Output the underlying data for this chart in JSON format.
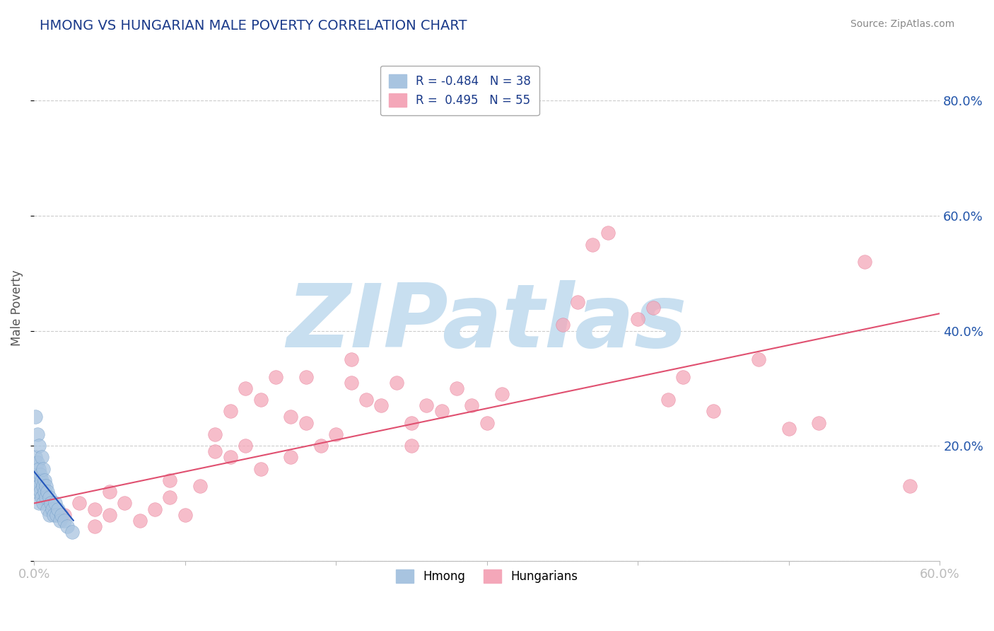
{
  "title": "HMONG VS HUNGARIAN MALE POVERTY CORRELATION CHART",
  "source_text": "Source: ZipAtlas.com",
  "ylabel": "Male Poverty",
  "xlim": [
    0.0,
    0.6
  ],
  "ylim": [
    0.0,
    0.88
  ],
  "xticks": [
    0.0,
    0.1,
    0.2,
    0.3,
    0.4,
    0.5,
    0.6
  ],
  "xticklabels": [
    "0.0%",
    "",
    "",
    "",
    "",
    "",
    "60.0%"
  ],
  "ytick_positions": [
    0.0,
    0.2,
    0.4,
    0.6,
    0.8
  ],
  "yticklabels_right": [
    "",
    "20.0%",
    "40.0%",
    "60.0%",
    "80.0%"
  ],
  "hmong_color": "#a8c4e0",
  "hmong_edge_color": "#6090c0",
  "hungarian_color": "#f4a7b9",
  "hungarian_edge_color": "#e06080",
  "hmong_R": -0.484,
  "hmong_N": 38,
  "hungarian_R": 0.495,
  "hungarian_N": 55,
  "title_color": "#1a3a8a",
  "source_color": "#888888",
  "axis_color": "#bbbbbb",
  "grid_color": "#cccccc",
  "watermark_text": "ZIPatlas",
  "watermark_color": "#c8dff0",
  "hmong_trend_color": "#2255bb",
  "hungarian_trend_color": "#e05070",
  "hmong_scatter_x": [
    0.001,
    0.001,
    0.001,
    0.002,
    0.002,
    0.002,
    0.002,
    0.003,
    0.003,
    0.003,
    0.003,
    0.004,
    0.004,
    0.005,
    0.005,
    0.005,
    0.006,
    0.006,
    0.006,
    0.007,
    0.007,
    0.008,
    0.008,
    0.009,
    0.009,
    0.01,
    0.01,
    0.011,
    0.012,
    0.013,
    0.014,
    0.015,
    0.016,
    0.017,
    0.018,
    0.02,
    0.022,
    0.025
  ],
  "hmong_scatter_y": [
    0.25,
    0.18,
    0.14,
    0.22,
    0.17,
    0.15,
    0.12,
    0.2,
    0.16,
    0.13,
    0.1,
    0.15,
    0.12,
    0.18,
    0.14,
    0.11,
    0.13,
    0.16,
    0.1,
    0.14,
    0.12,
    0.13,
    0.11,
    0.12,
    0.09,
    0.11,
    0.08,
    0.1,
    0.09,
    0.08,
    0.1,
    0.08,
    0.09,
    0.07,
    0.08,
    0.07,
    0.06,
    0.05
  ],
  "hungarian_scatter_x": [
    0.02,
    0.03,
    0.04,
    0.04,
    0.05,
    0.05,
    0.06,
    0.07,
    0.08,
    0.09,
    0.09,
    0.1,
    0.11,
    0.12,
    0.12,
    0.13,
    0.13,
    0.14,
    0.14,
    0.15,
    0.15,
    0.16,
    0.17,
    0.17,
    0.18,
    0.18,
    0.19,
    0.2,
    0.21,
    0.21,
    0.22,
    0.23,
    0.24,
    0.25,
    0.25,
    0.26,
    0.27,
    0.28,
    0.29,
    0.3,
    0.31,
    0.35,
    0.36,
    0.37,
    0.38,
    0.4,
    0.41,
    0.42,
    0.43,
    0.45,
    0.48,
    0.5,
    0.52,
    0.55,
    0.58
  ],
  "hungarian_scatter_y": [
    0.08,
    0.1,
    0.06,
    0.09,
    0.12,
    0.08,
    0.1,
    0.07,
    0.09,
    0.11,
    0.14,
    0.08,
    0.13,
    0.19,
    0.22,
    0.18,
    0.26,
    0.2,
    0.3,
    0.16,
    0.28,
    0.32,
    0.18,
    0.25,
    0.32,
    0.24,
    0.2,
    0.22,
    0.31,
    0.35,
    0.28,
    0.27,
    0.31,
    0.24,
    0.2,
    0.27,
    0.26,
    0.3,
    0.27,
    0.24,
    0.29,
    0.41,
    0.45,
    0.55,
    0.57,
    0.42,
    0.44,
    0.28,
    0.32,
    0.26,
    0.35,
    0.23,
    0.24,
    0.52,
    0.13
  ],
  "pink_trend_x0": 0.0,
  "pink_trend_y0": 0.1,
  "pink_trend_x1": 0.6,
  "pink_trend_y1": 0.43,
  "blue_trend_x0": 0.0,
  "blue_trend_y0": 0.155,
  "blue_trend_x1": 0.026,
  "blue_trend_y1": 0.07
}
